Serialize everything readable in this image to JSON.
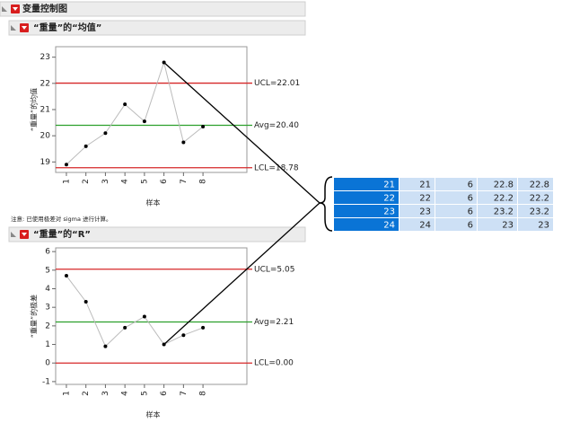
{
  "header": {
    "title": "变量控制图"
  },
  "note": "注意: 已使用极差对 sigma 进行计算。",
  "chart_data": [
    {
      "type": "line",
      "title": "“重量”的“均值”",
      "x_label": "样本",
      "y_label": "“重量”的均值",
      "x": [
        1,
        2,
        3,
        4,
        5,
        6,
        7,
        8
      ],
      "xlim": [
        0.45,
        10.25
      ],
      "xticks": [
        1,
        2,
        3,
        4,
        5,
        6,
        7,
        8
      ],
      "ylim": [
        18.6,
        23.4
      ],
      "yticks": [
        19,
        20,
        21,
        22,
        23
      ],
      "series": [
        {
          "color": "#000000",
          "values": [
            18.9,
            19.6,
            20.1,
            21.2,
            20.55,
            22.8,
            19.75,
            20.35
          ]
        }
      ],
      "limits": [
        {
          "value": 22.01,
          "label": "UCL=22.01",
          "color": "#d62728"
        },
        {
          "value": 20.4,
          "label": "Avg=20.40",
          "color": "#2ca02c"
        },
        {
          "value": 18.78,
          "label": "LCL=18.78",
          "color": "#d62728"
        }
      ]
    },
    {
      "type": "line",
      "title": "“重量”的“R”",
      "x_label": "样本",
      "y_label": "“重量”的极差",
      "x": [
        1,
        2,
        3,
        4,
        5,
        6,
        7,
        8
      ],
      "xlim": [
        0.45,
        10.25
      ],
      "xticks": [
        1,
        2,
        3,
        4,
        5,
        6,
        7,
        8
      ],
      "ylim": [
        -1.15,
        6.2
      ],
      "yticks": [
        -1,
        0,
        1,
        2,
        3,
        4,
        5,
        6
      ],
      "series": [
        {
          "color": "#000000",
          "values": [
            4.7,
            3.3,
            0.9,
            1.9,
            2.5,
            1.0,
            1.5,
            1.9
          ]
        }
      ],
      "limits": [
        {
          "value": 5.05,
          "label": "UCL=5.05",
          "color": "#d62728"
        },
        {
          "value": 2.21,
          "label": "Avg=2.21",
          "color": "#2ca02c"
        },
        {
          "value": 0,
          "label": "LCL=0.00",
          "color": "#d62728"
        }
      ]
    }
  ],
  "table": {
    "rows": [
      [
        21,
        21,
        6,
        22.8,
        22.8
      ],
      [
        22,
        22,
        6,
        22.2,
        22.2
      ],
      [
        23,
        23,
        6,
        23.2,
        23.2
      ],
      [
        24,
        24,
        6,
        23,
        23
      ]
    ]
  }
}
